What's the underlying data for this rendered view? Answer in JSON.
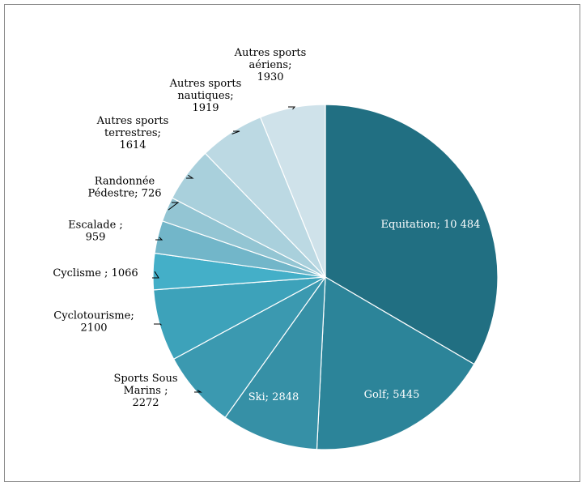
{
  "chart_data": {
    "type": "pie",
    "title": "",
    "legend": "none",
    "start_angle_deg": 0,
    "direction": "clockwise",
    "slices": [
      {
        "label": "Equitation",
        "value": 10484,
        "display": "Equitation; 10 484",
        "color": "#216f82",
        "label_lines": [
          "Equitation; 10 484"
        ],
        "label_mode": "inside"
      },
      {
        "label": "Golf",
        "value": 5445,
        "display": "Golf; 5445",
        "color": "#2c8499",
        "label_lines": [
          "Golf; 5445"
        ],
        "label_mode": "inside"
      },
      {
        "label": "Ski",
        "value": 2848,
        "display": "Ski; 2848",
        "color": "#3690a6",
        "label_lines": [
          "Ski; 2848"
        ],
        "label_mode": "inside"
      },
      {
        "label": "Sports Sous Marins",
        "value": 2272,
        "display": "Sports Sous Marins ; 2272",
        "color": "#3b99b0",
        "label_lines": [
          "Sports Sous",
          "Marins ;",
          "2272"
        ],
        "label_mode": "outside"
      },
      {
        "label": "Cyclotourisme",
        "value": 2100,
        "display": "Cyclotourisme; 2100",
        "color": "#3da2ba",
        "label_lines": [
          "Cyclotourisme;",
          "2100"
        ],
        "label_mode": "outside"
      },
      {
        "label": "Cyclisme",
        "value": 1066,
        "display": "Cyclisme ; 1066",
        "color": "#44afc8",
        "label_lines": [
          "Cyclisme ; 1066"
        ],
        "label_mode": "outside"
      },
      {
        "label": "Escalade",
        "value": 959,
        "display": "Escalade ; 959",
        "color": "#72b6c9",
        "label_lines": [
          "Escalade ;",
          "959"
        ],
        "label_mode": "outside"
      },
      {
        "label": "Randonnée Pédestre",
        "value": 726,
        "display": "Randonnée Pédestre; 726",
        "color": "#93c5d3",
        "label_lines": [
          "Randonnée",
          "Pédestre; 726"
        ],
        "label_mode": "outside"
      },
      {
        "label": "Autres sports terrestres",
        "value": 1614,
        "display": "Autres sports terrestres; 1614",
        "color": "#a9d0dc",
        "label_lines": [
          "Autres sports",
          "terrestres;",
          "1614"
        ],
        "label_mode": "outside"
      },
      {
        "label": "Autres sports nautiques",
        "value": 1919,
        "display": "Autres sports nautiques; 1919",
        "color": "#bcd9e3",
        "label_lines": [
          "Autres sports",
          "nautiques;",
          "1919"
        ],
        "label_mode": "outside"
      },
      {
        "label": "Autres sports aériens",
        "value": 1930,
        "display": "Autres sports aériens; 1930",
        "color": "#cfe2ea",
        "label_lines": [
          "Autres sports",
          "aériens;",
          "1930"
        ],
        "label_mode": "outside"
      }
    ]
  }
}
